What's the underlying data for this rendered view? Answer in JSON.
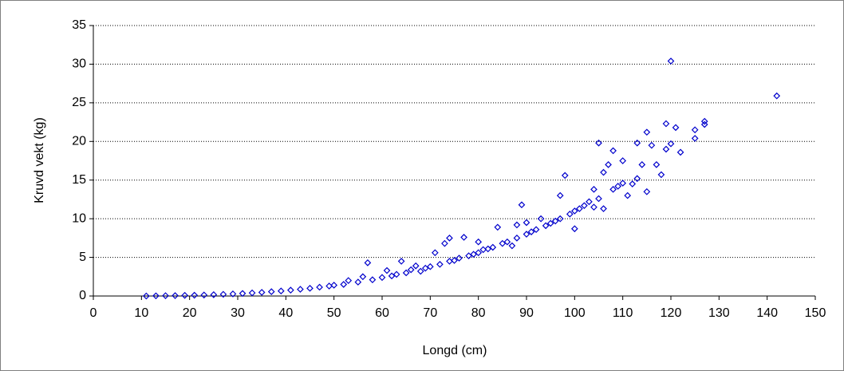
{
  "chart_data": {
    "type": "scatter",
    "x_label": "Longd (cm)",
    "y_label": "Kruvd vekt (kg)",
    "color": "#0000cc",
    "grid": true,
    "xlim": [
      0,
      150
    ],
    "xticks": [
      0,
      10,
      20,
      30,
      40,
      50,
      60,
      70,
      80,
      90,
      100,
      110,
      120,
      130,
      140,
      150
    ],
    "ylim": [
      0,
      35
    ],
    "yticks": [
      0,
      5,
      10,
      15,
      20,
      25,
      30,
      35
    ],
    "x": [
      11,
      13,
      15,
      17,
      19,
      21,
      23,
      25,
      27,
      29,
      31,
      33,
      35,
      37,
      39,
      41,
      43,
      45,
      47,
      49,
      50,
      52,
      53,
      55,
      56,
      57,
      58,
      60,
      61,
      62,
      63,
      64,
      65,
      66,
      67,
      68,
      69,
      70,
      71,
      72,
      73,
      74,
      74,
      75,
      76,
      77,
      78,
      79,
      80,
      80,
      81,
      82,
      83,
      84,
      85,
      86,
      87,
      88,
      88,
      89,
      90,
      90,
      91,
      92,
      93,
      94,
      95,
      96,
      97,
      97,
      98,
      99,
      100,
      100,
      101,
      102,
      103,
      104,
      104,
      105,
      105,
      106,
      106,
      107,
      108,
      108,
      109,
      110,
      110,
      111,
      112,
      113,
      113,
      114,
      115,
      115,
      116,
      117,
      118,
      119,
      119,
      120,
      120,
      121,
      122,
      125,
      125,
      127,
      127,
      142
    ],
    "values": [
      0.0,
      0.02,
      0.04,
      0.05,
      0.08,
      0.1,
      0.13,
      0.17,
      0.22,
      0.27,
      0.33,
      0.4,
      0.47,
      0.56,
      0.65,
      0.76,
      0.87,
      1.0,
      1.14,
      1.29,
      1.4,
      1.5,
      2.0,
      1.8,
      2.5,
      4.3,
      2.1,
      2.4,
      3.3,
      2.6,
      2.8,
      4.5,
      3.0,
      3.4,
      3.9,
      3.2,
      3.6,
      3.8,
      5.6,
      4.1,
      6.8,
      4.5,
      7.5,
      4.6,
      4.9,
      7.6,
      5.2,
      5.4,
      5.6,
      7.0,
      6.0,
      6.1,
      6.3,
      8.9,
      6.8,
      7.0,
      6.5,
      7.5,
      9.2,
      11.8,
      8.0,
      9.5,
      8.3,
      8.6,
      10.0,
      9.1,
      9.4,
      9.7,
      10.0,
      13.0,
      15.6,
      10.6,
      11.0,
      8.7,
      11.3,
      11.7,
      12.2,
      13.8,
      11.5,
      19.8,
      12.6,
      16.0,
      11.3,
      17.0,
      13.8,
      18.8,
      14.2,
      14.6,
      17.5,
      13.0,
      14.5,
      19.8,
      15.2,
      17.0,
      21.2,
      13.5,
      19.5,
      17.0,
      15.7,
      22.3,
      19.0,
      30.4,
      19.7,
      21.8,
      18.6,
      21.5,
      20.4,
      22.6,
      22.2,
      25.9
    ]
  }
}
